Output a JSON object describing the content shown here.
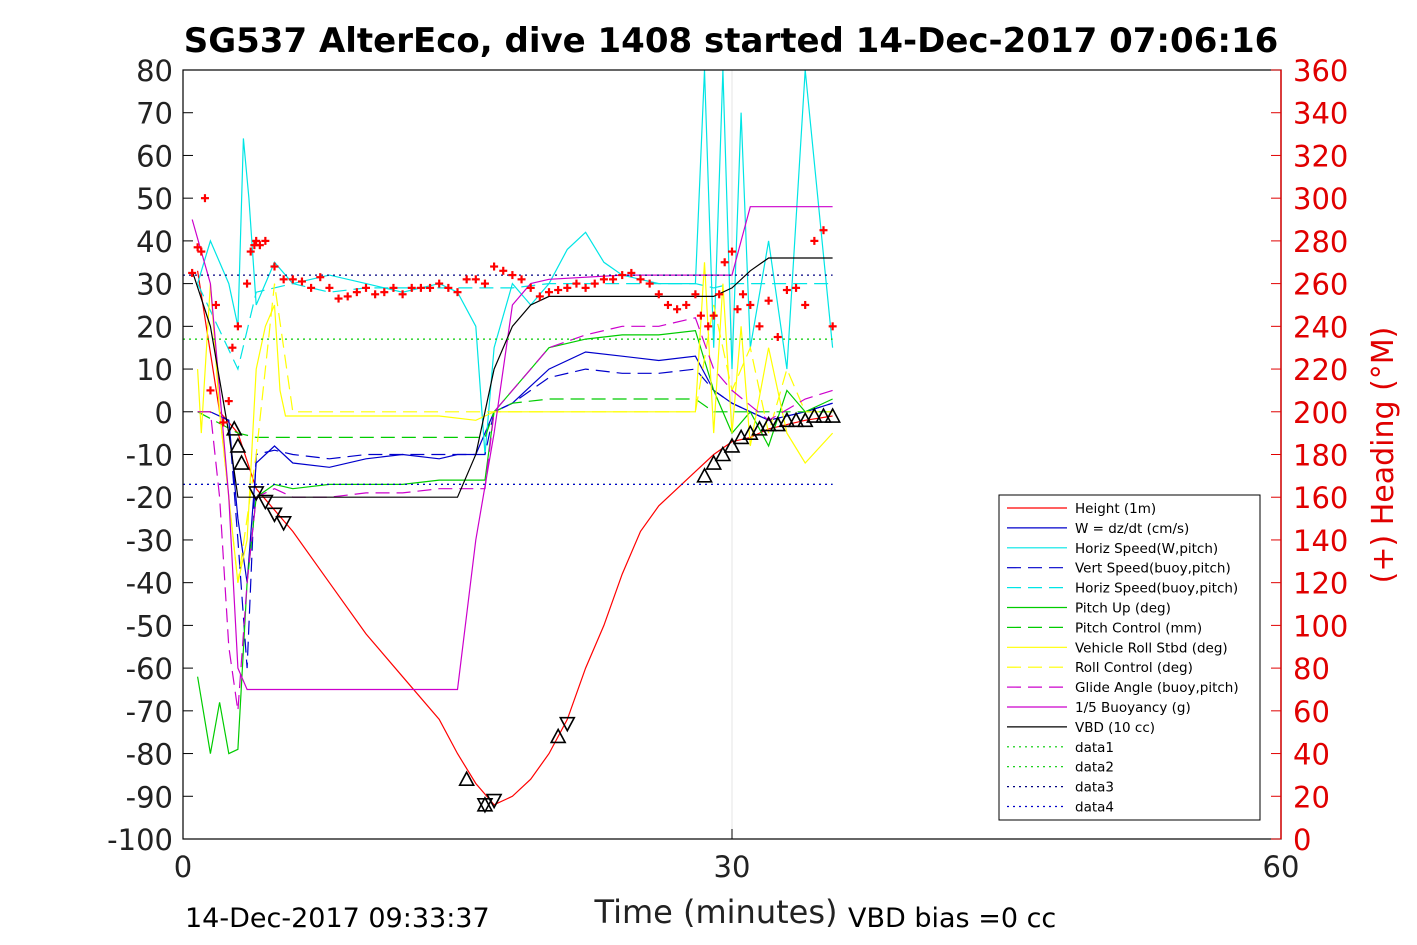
{
  "chart_data": {
    "type": "line",
    "title": "SG537 AlterEco, dive 1408 started 14-Dec-2017 07:06:16",
    "xlabel": "Time (minutes)",
    "ylabel_right": "(+) Heading (°M)",
    "xlim": [
      0,
      60
    ],
    "ylim_left": [
      -100,
      80
    ],
    "ylim_right": [
      0,
      360
    ],
    "x_ticks": [
      "0",
      "30",
      "60"
    ],
    "y_left_ticks": [
      "80",
      "70",
      "60",
      "50",
      "40",
      "30",
      "20",
      "10",
      "0",
      "-10",
      "-20",
      "-30",
      "-40",
      "-50",
      "-60",
      "-70",
      "-80",
      "-90",
      "-100"
    ],
    "y_right_ticks": [
      "360",
      "340",
      "320",
      "300",
      "280",
      "260",
      "240",
      "220",
      "200",
      "180",
      "160",
      "140",
      "120",
      "100",
      "80",
      "60",
      "40",
      "20",
      "0"
    ],
    "footer_left": "14-Dec-2017 09:33:37",
    "footer_right": "VBD bias =0 cc",
    "legend": [
      {
        "label": "Height (1m)",
        "color": "#ff0000",
        "style": "solid"
      },
      {
        "label": "W = dz/dt (cm/s)",
        "color": "#0000cc",
        "style": "solid"
      },
      {
        "label": "Horiz Speed(W,pitch)",
        "color": "#00e5e5",
        "style": "solid"
      },
      {
        "label": "Vert Speed(buoy,pitch)",
        "color": "#0000cc",
        "style": "dashed"
      },
      {
        "label": "Horiz Speed(buoy,pitch)",
        "color": "#00e5e5",
        "style": "dashed"
      },
      {
        "label": "Pitch Up (deg)",
        "color": "#00cc00",
        "style": "solid"
      },
      {
        "label": "Pitch Control (mm)",
        "color": "#00cc00",
        "style": "dashed"
      },
      {
        "label": "Vehicle Roll Stbd (deg)",
        "color": "#ffff00",
        "style": "solid"
      },
      {
        "label": "Roll Control (deg)",
        "color": "#ffff00",
        "style": "dashed"
      },
      {
        "label": "Glide Angle (buoy,pitch)",
        "color": "#cc00cc",
        "style": "dashed"
      },
      {
        "label": "1/5 Buoyancy (g)",
        "color": "#cc00cc",
        "style": "solid"
      },
      {
        "label": "VBD (10 cc)",
        "color": "#000000",
        "style": "solid"
      },
      {
        "label": "data1",
        "color": "#00cc00",
        "style": "dotted"
      },
      {
        "label": "data2",
        "color": "#00cc00",
        "style": "dotted"
      },
      {
        "label": "data3",
        "color": "#000080",
        "style": "dotted"
      },
      {
        "label": "data4",
        "color": "#0000cc",
        "style": "dotted"
      }
    ],
    "series": [
      {
        "name": "Height (1m)",
        "x": [
          0.8,
          2,
          3,
          4,
          6,
          8,
          10,
          12,
          14,
          15,
          16,
          17,
          18,
          19,
          20,
          21,
          22,
          23,
          24,
          25,
          26,
          27,
          28,
          29,
          30,
          31,
          32,
          33,
          34,
          35.5
        ],
        "values": [
          33,
          0,
          -5,
          -18,
          -28,
          -40,
          -52,
          -62,
          -72,
          -80,
          -87,
          -92,
          -90,
          -86,
          -80,
          -72,
          -60,
          -50,
          -38,
          -28,
          -22,
          -18,
          -14,
          -10,
          -7,
          -6,
          -4,
          -3,
          -2,
          -1
        ]
      },
      {
        "name": "W = dz/dt (cm/s)",
        "x": [
          0.8,
          1.5,
          2.5,
          3,
          3.5,
          4,
          5,
          6,
          8,
          10,
          12,
          14,
          15,
          16,
          16.5,
          17,
          18,
          19,
          20,
          22,
          24,
          26,
          28,
          29,
          30,
          32,
          34,
          35.5
        ],
        "values": [
          0,
          0,
          -2,
          -25,
          -40,
          -12,
          -8,
          -12,
          -13,
          -11,
          -10,
          -11,
          -10,
          -10,
          -5,
          0,
          2,
          6,
          10,
          14,
          13,
          12,
          13,
          5,
          2,
          -2,
          0,
          2
        ]
      },
      {
        "name": "Horiz Speed(W,pitch)",
        "x": [
          0.8,
          1.5,
          2.5,
          3,
          3.3,
          3.6,
          4,
          5,
          6,
          8,
          10,
          12,
          14,
          15,
          16,
          16.5,
          17,
          18,
          19,
          20,
          21,
          22,
          23,
          24,
          26,
          28,
          28.5,
          29,
          29.5,
          30,
          30.5,
          31,
          32,
          33,
          34,
          35.5
        ],
        "values": [
          30,
          40,
          30,
          20,
          64,
          50,
          25,
          35,
          30,
          32,
          30,
          28,
          30,
          28,
          20,
          -10,
          15,
          30,
          25,
          30,
          38,
          42,
          35,
          32,
          30,
          30,
          80,
          15,
          80,
          10,
          70,
          15,
          40,
          10,
          80,
          15
        ]
      },
      {
        "name": "Vert Speed(buoy,pitch)",
        "x": [
          0.8,
          1.5,
          2.5,
          3,
          3.5,
          4,
          5,
          6,
          8,
          10,
          12,
          14,
          16.5,
          17,
          18,
          19,
          20,
          22,
          24,
          26,
          28,
          29,
          30,
          32,
          34,
          35.5
        ],
        "values": [
          0,
          0,
          -2,
          -30,
          -60,
          -10,
          -9,
          -10,
          -11,
          -10,
          -10,
          -10,
          -10,
          0,
          2,
          5,
          8,
          10,
          9,
          9,
          10,
          5,
          2,
          -2,
          0,
          2
        ]
      },
      {
        "name": "Horiz Speed(buoy,pitch)",
        "x": [
          0.8,
          3,
          4,
          6,
          8,
          10,
          14,
          16.5,
          17,
          18,
          20,
          22,
          24,
          28,
          29,
          30,
          35.5
        ],
        "values": [
          30,
          10,
          28,
          30,
          28,
          29,
          29,
          29,
          29,
          29,
          30,
          30,
          30,
          30,
          29,
          30,
          30
        ]
      },
      {
        "name": "Pitch Up (deg)",
        "x": [
          0.8,
          1.5,
          2,
          2.5,
          3,
          3.5,
          4,
          5,
          6,
          8,
          10,
          12,
          14,
          16.5,
          17,
          18,
          19,
          20,
          22,
          24,
          26,
          28,
          29,
          30,
          31,
          32,
          33,
          34,
          35.5
        ],
        "values": [
          -62,
          -80,
          -68,
          -80,
          -79,
          -40,
          -20,
          -17,
          -18,
          -17,
          -17,
          -17,
          -16,
          -16,
          0,
          5,
          10,
          15,
          17,
          18,
          18,
          19,
          5,
          -5,
          0,
          -8,
          5,
          0,
          3
        ]
      },
      {
        "name": "Pitch Control (mm)",
        "x": [
          0.8,
          3,
          4,
          6,
          8,
          10,
          14,
          16.5,
          17,
          18,
          20,
          22,
          24,
          28,
          29,
          30,
          35.5
        ],
        "values": [
          0,
          -5,
          -6,
          -6,
          -6,
          -6,
          -6,
          -6,
          0,
          2,
          3,
          3,
          3,
          3,
          0,
          0,
          0
        ]
      },
      {
        "name": "Vehicle Roll Stbd (deg)",
        "x": [
          0.8,
          1,
          1.5,
          2,
          2.5,
          3,
          3.5,
          4,
          4.5,
          5,
          5.3,
          5.6,
          6,
          8,
          10,
          12,
          14,
          16,
          16.5,
          17,
          18,
          20,
          22,
          24,
          26,
          28,
          28.5,
          29,
          29.5,
          30,
          30.5,
          31,
          32,
          33,
          34,
          35.5
        ],
        "values": [
          10,
          -5,
          30,
          0,
          -20,
          -40,
          -30,
          10,
          20,
          25,
          5,
          -1,
          -1,
          -1,
          -1,
          -1,
          -1,
          -2,
          -1,
          0,
          0,
          0,
          0,
          0,
          0,
          0,
          35,
          -5,
          30,
          -5,
          20,
          -8,
          15,
          -5,
          -12,
          -5
        ]
      },
      {
        "name": "Roll Control (deg)",
        "x": [
          0.8,
          2,
          3,
          4,
          5,
          6,
          10,
          14,
          17,
          20,
          24,
          28,
          29,
          30,
          31,
          32,
          33,
          34,
          35.5
        ],
        "values": [
          0,
          0,
          -40,
          -10,
          30,
          0,
          0,
          0,
          0,
          0,
          0,
          0,
          25,
          5,
          15,
          -5,
          10,
          0,
          0
        ]
      },
      {
        "name": "Glide Angle (buoy,pitch)",
        "x": [
          0.8,
          1.5,
          2,
          2.5,
          3,
          3.5,
          4,
          5,
          6,
          8,
          10,
          12,
          14,
          16.5,
          17,
          18,
          19,
          20,
          22,
          24,
          26,
          28,
          29,
          30,
          32,
          34,
          35.5
        ],
        "values": [
          0,
          0,
          -20,
          -55,
          -70,
          -40,
          -20,
          -18,
          -20,
          -20,
          -19,
          -19,
          -18,
          -18,
          0,
          5,
          10,
          15,
          18,
          20,
          20,
          22,
          10,
          5,
          -2,
          3,
          5
        ]
      },
      {
        "name": "1/5 Buoyancy (g)",
        "x": [
          0.5,
          1.5,
          2.5,
          3,
          3.5,
          4,
          8,
          12,
          14,
          15,
          16,
          17,
          18,
          19,
          20,
          24,
          28,
          29,
          30,
          30.5,
          31,
          35.5
        ],
        "values": [
          45,
          30,
          -20,
          -60,
          -65,
          -65,
          -65,
          -65,
          -65,
          -65,
          -30,
          -5,
          25,
          30,
          31,
          32,
          32,
          32,
          32,
          40,
          48,
          48
        ]
      },
      {
        "name": "VBD (10 cc)",
        "x": [
          0.5,
          1.5,
          2.5,
          3,
          4,
          6,
          10,
          14,
          15,
          16,
          16.5,
          17,
          18,
          19,
          20,
          24,
          28,
          29,
          30,
          31,
          32,
          35.5
        ],
        "values": [
          33,
          20,
          -5,
          -20,
          -20,
          -20,
          -20,
          -20,
          -20,
          -10,
          0,
          10,
          20,
          25,
          27,
          27,
          27,
          27,
          29,
          33,
          36,
          36
        ]
      },
      {
        "name": "data1",
        "x": [
          0,
          35.5
        ],
        "values": [
          17,
          17
        ]
      },
      {
        "name": "data2",
        "x": [
          0,
          35.5
        ],
        "values": [
          -17,
          -17
        ]
      },
      {
        "name": "data3",
        "x": [
          0,
          35.5
        ],
        "values": [
          32,
          32
        ]
      },
      {
        "name": "data4",
        "x": [
          0,
          35.5
        ],
        "values": [
          -17,
          -17
        ]
      }
    ],
    "heading_points": {
      "name": "(+) Heading",
      "color": "#ff0000",
      "x": [
        0.5,
        0.8,
        1,
        1.2,
        1.5,
        1.8,
        2.2,
        2.5,
        2.7,
        3,
        3.5,
        3.7,
        3.9,
        4,
        4.2,
        4.5,
        5,
        5.5,
        6,
        6.5,
        7,
        7.5,
        8,
        8.5,
        9,
        9.5,
        10,
        10.5,
        11,
        11.5,
        12,
        12.5,
        13,
        13.5,
        14,
        14.5,
        15,
        15.5,
        16,
        16.5,
        17,
        17.5,
        18,
        18.5,
        19,
        19.5,
        20,
        20.5,
        21,
        21.5,
        22,
        22.5,
        23,
        23.5,
        24,
        24.5,
        25,
        25.5,
        26,
        26.5,
        27,
        27.5,
        28,
        28.3,
        28.7,
        29,
        29.3,
        29.6,
        30,
        30.3,
        30.6,
        31,
        31.5,
        32,
        32.5,
        33,
        33.5,
        34,
        34.5,
        35,
        35.5
      ],
      "values": [
        265,
        277,
        275,
        300,
        210,
        250,
        195,
        205,
        230,
        240,
        260,
        275,
        278,
        280,
        278,
        280,
        268,
        262,
        262,
        261,
        258,
        263,
        258,
        253,
        254,
        256,
        258,
        255,
        256,
        258,
        255,
        258,
        258,
        258,
        260,
        258,
        256,
        262,
        262,
        260,
        268,
        266,
        264,
        262,
        258,
        254,
        256,
        257,
        258,
        260,
        258,
        260,
        262,
        262,
        264,
        265,
        262,
        260,
        255,
        250,
        248,
        250,
        255,
        245,
        240,
        245,
        255,
        270,
        275,
        248,
        255,
        250,
        240,
        252,
        235,
        257,
        258,
        250,
        280,
        285,
        240
      ]
    },
    "triangle_markers": {
      "up_x": [
        2.8,
        3,
        3.2,
        15.5,
        16.5,
        20.5,
        28.5,
        29,
        29.5,
        30,
        30.5,
        31,
        31.5,
        32,
        32.5,
        33,
        33.5,
        34,
        34.5,
        35,
        35.5
      ],
      "up_y": [
        -4,
        -8,
        -12,
        -86,
        -92,
        -76,
        -15,
        -12,
        -10,
        -8,
        -6,
        -5,
        -4,
        -3,
        -3,
        -2,
        -2,
        -2,
        -1,
        -1,
        -1
      ],
      "down_x": [
        4,
        4.5,
        5,
        5.5,
        16.5,
        17,
        21
      ],
      "down_y": [
        -19,
        -21,
        -24,
        -26,
        -92,
        -91,
        -73
      ]
    }
  }
}
